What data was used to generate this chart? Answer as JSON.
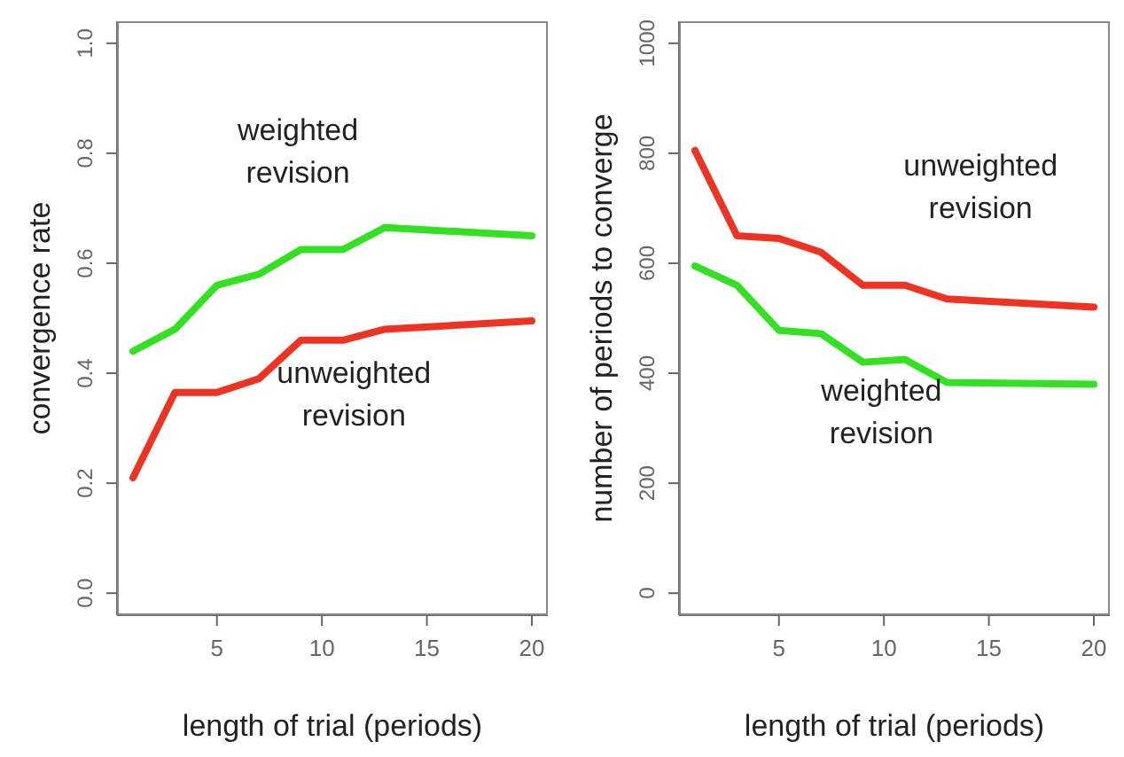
{
  "chart_data": [
    {
      "type": "line",
      "xlabel": "length of trial (periods)",
      "ylabel": "convergence rate",
      "x": [
        1,
        3,
        5,
        7,
        9,
        11,
        13,
        20
      ],
      "xlim": [
        0.24,
        20.76
      ],
      "xticks": [
        5,
        10,
        15,
        20
      ],
      "ylim": [
        -0.04,
        1.04
      ],
      "yticks": [
        {
          "value": 0,
          "label": "0.0"
        },
        0.2,
        0.4,
        0.6,
        0.8,
        {
          "value": 1,
          "label": "1.0"
        }
      ],
      "grid": false,
      "legend": false,
      "series": [
        {
          "name": "weighted revision",
          "color": "#33e022",
          "values": [
            0.44,
            0.48,
            0.56,
            0.58,
            0.625,
            0.625,
            0.665,
            0.65
          ]
        },
        {
          "name": "unweighted revision",
          "color": "#ee3322",
          "values": [
            0.21,
            0.365,
            0.365,
            0.39,
            0.46,
            0.46,
            0.48,
            0.495
          ]
        }
      ]
    },
    {
      "type": "line",
      "xlabel": "length of trial (periods)",
      "ylabel": "number of periods to converge",
      "x": [
        1,
        3,
        5,
        7,
        9,
        11,
        13,
        20
      ],
      "xlim": [
        0.24,
        20.76
      ],
      "xticks": [
        5,
        10,
        15,
        20
      ],
      "ylim": [
        -40,
        1040
      ],
      "yticks": [
        0,
        200,
        400,
        600,
        800,
        1000
      ],
      "grid": false,
      "legend": false,
      "series": [
        {
          "name": "unweighted revision",
          "color": "#ee3322",
          "values": [
            805,
            650,
            645,
            620,
            560,
            560,
            535,
            520
          ]
        },
        {
          "name": "weighted revision",
          "color": "#33e022",
          "values": [
            595,
            560,
            478,
            472,
            420,
            425,
            383,
            380
          ]
        }
      ]
    }
  ]
}
